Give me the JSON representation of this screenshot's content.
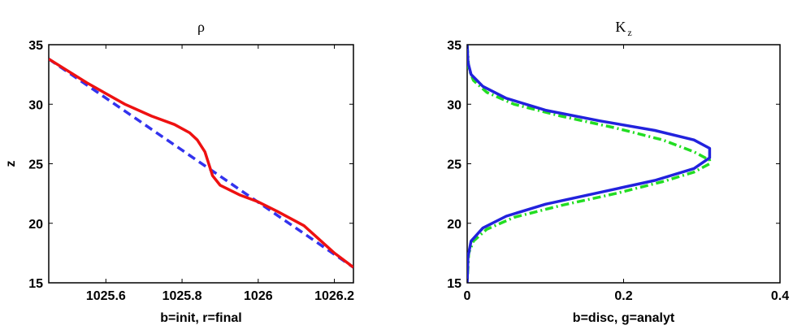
{
  "chart_data": [
    {
      "type": "line",
      "title": "ρ",
      "xlabel": "b=init, r=final",
      "ylabel": "z",
      "xlim": [
        1025.45,
        1026.25
      ],
      "ylim": [
        15,
        35
      ],
      "xticks": [
        "1025.6",
        "1025.8",
        "1026",
        "1026.2"
      ],
      "xtick_values": [
        1025.6,
        1025.8,
        1026.0,
        1026.2
      ],
      "yticks": [
        "15",
        "20",
        "25",
        "30",
        "35"
      ],
      "ytick_values": [
        15,
        20,
        25,
        30,
        35
      ],
      "grid": false,
      "series": [
        {
          "color": "#3333ee",
          "style": "dashed",
          "x": [
            1025.45,
            1026.25
          ],
          "y": [
            33.8,
            16.3
          ]
        },
        {
          "color": "#ee1111",
          "style": "solid",
          "x": [
            1025.45,
            1025.55,
            1025.65,
            1025.72,
            1025.78,
            1025.82,
            1025.84,
            1025.86,
            1025.87,
            1025.88,
            1025.9,
            1025.95,
            1026.0,
            1026.05,
            1026.12,
            1026.2,
            1026.25
          ],
          "y": [
            33.8,
            31.8,
            30.0,
            29.0,
            28.3,
            27.6,
            27.0,
            26.0,
            25.0,
            24.0,
            23.2,
            22.4,
            21.8,
            21.0,
            19.8,
            17.5,
            16.3
          ]
        }
      ]
    },
    {
      "type": "line",
      "title": "K",
      "title_subscript": "z",
      "xlabel": "b=disc, g=analyt",
      "ylabel": "",
      "xlim": [
        0,
        0.4
      ],
      "ylim": [
        15,
        35
      ],
      "xticks": [
        "0",
        "0.2",
        "0.4"
      ],
      "xtick_values": [
        0,
        0.2,
        0.4
      ],
      "yticks": [
        "15",
        "20",
        "25",
        "30",
        "35"
      ],
      "ytick_values": [
        15,
        20,
        25,
        30,
        35
      ],
      "grid": false,
      "series": [
        {
          "color": "#22dd22",
          "style": "dashdot",
          "x": [
            0.0,
            0.002,
            0.008,
            0.025,
            0.06,
            0.12,
            0.19,
            0.25,
            0.29,
            0.31,
            0.31,
            0.29,
            0.25,
            0.19,
            0.12,
            0.06,
            0.025,
            0.008,
            0.002,
            0.0
          ],
          "y": [
            35.0,
            33.0,
            32.0,
            31.0,
            30.0,
            29.0,
            28.0,
            27.0,
            26.0,
            25.3,
            25.0,
            24.3,
            23.5,
            22.5,
            21.5,
            20.5,
            19.5,
            18.5,
            17.5,
            15.0
          ]
        },
        {
          "color": "#2222dd",
          "style": "solid",
          "x": [
            0.0,
            0.001,
            0.005,
            0.02,
            0.05,
            0.1,
            0.17,
            0.24,
            0.29,
            0.31,
            0.31,
            0.29,
            0.24,
            0.17,
            0.1,
            0.05,
            0.02,
            0.005,
            0.001,
            0.0
          ],
          "y": [
            35.0,
            33.5,
            32.5,
            31.5,
            30.5,
            29.5,
            28.6,
            27.8,
            27.0,
            26.3,
            25.5,
            24.6,
            23.6,
            22.6,
            21.6,
            20.6,
            19.6,
            18.5,
            17.2,
            15.0
          ]
        }
      ]
    }
  ]
}
